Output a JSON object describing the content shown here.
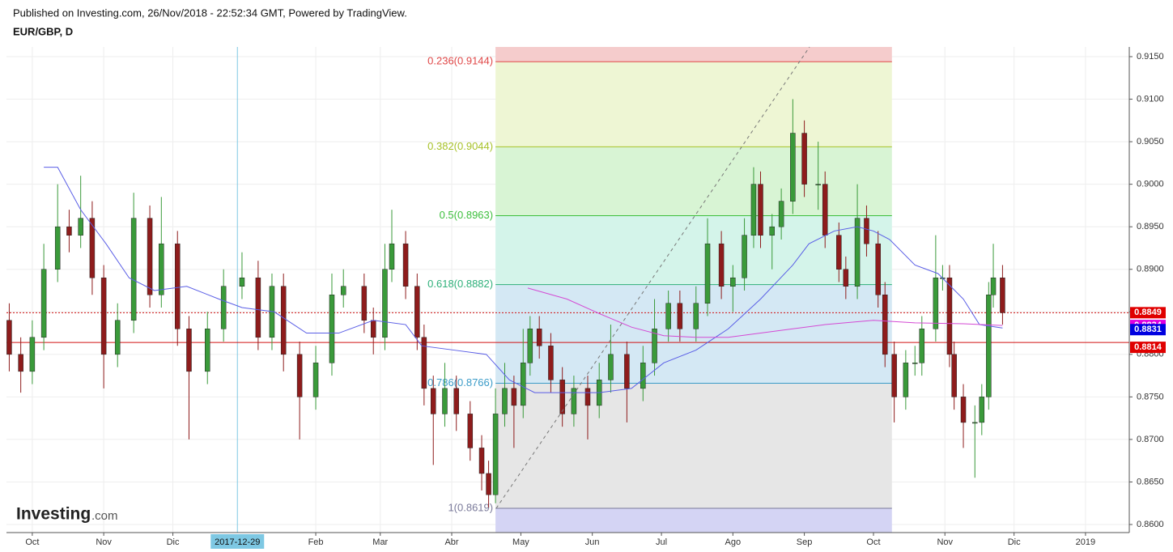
{
  "header": {
    "published": "Published on Investing.com, 26/Nov/2018 - 22:52:34 GMT, Powered by TradingView.",
    "symbol": "EUR/GBP, D"
  },
  "logo": {
    "brand": "Investing",
    "suffix": ".com"
  },
  "chart_data": {
    "type": "candlestick",
    "xlim": [
      -11.2,
      476
    ],
    "ylim": [
      0.85905,
      0.91614
    ],
    "yticks": [
      {
        "value": 0.86,
        "label": "0.8600"
      },
      {
        "value": 0.865,
        "label": "0.8650"
      },
      {
        "value": 0.87,
        "label": "0.8700"
      },
      {
        "value": 0.875,
        "label": "0.8750"
      },
      {
        "value": 0.88,
        "label": "0.8800"
      },
      {
        "value": 0.885,
        "label": "0.8850"
      },
      {
        "value": 0.89,
        "label": "0.8900"
      },
      {
        "value": 0.895,
        "label": "0.8950"
      },
      {
        "value": 0.9,
        "label": "0.9000"
      },
      {
        "value": 0.905,
        "label": "0.9050"
      },
      {
        "value": 0.91,
        "label": "0.9100"
      },
      {
        "value": 0.915,
        "label": "0.9150"
      }
    ],
    "xticks": [
      {
        "value": 0,
        "label": "Oct"
      },
      {
        "value": 31,
        "label": "Nov"
      },
      {
        "value": 61,
        "label": "Dic"
      },
      {
        "value": 123,
        "label": "Feb"
      },
      {
        "value": 151,
        "label": "Mar"
      },
      {
        "value": 182,
        "label": "Abr"
      },
      {
        "value": 212,
        "label": "May"
      },
      {
        "value": 243,
        "label": "Jun"
      },
      {
        "value": 273,
        "label": "Jul"
      },
      {
        "value": 304,
        "label": "Ago"
      },
      {
        "value": 335,
        "label": "Sep"
      },
      {
        "value": 365,
        "label": "Oct"
      },
      {
        "value": 396,
        "label": "Nov"
      },
      {
        "value": 426,
        "label": "Dic"
      },
      {
        "value": 457,
        "label": "2019"
      }
    ],
    "grid": true,
    "up_color": "#3a9a3a",
    "down_color": "#8e1c1c",
    "candles": {
      "x": [
        -10,
        -5,
        0,
        5,
        11,
        16,
        21,
        26,
        31,
        37,
        44,
        51,
        56,
        63,
        68,
        76,
        83,
        91,
        98,
        104,
        109,
        116,
        123,
        130,
        135,
        144,
        148,
        153,
        156,
        162,
        167,
        170,
        174,
        179,
        184,
        190,
        195,
        198,
        201,
        205,
        209,
        213,
        216,
        220,
        225,
        230,
        235,
        241,
        246,
        251,
        258,
        265,
        270,
        276,
        281,
        288,
        293,
        299,
        304,
        309,
        313,
        316,
        321,
        325,
        330,
        335,
        341,
        344,
        350,
        353,
        358,
        362,
        367,
        370,
        374,
        379,
        383,
        386,
        392,
        395,
        398,
        400,
        404,
        409,
        412,
        415,
        417,
        421
      ],
      "open": [
        0.884,
        0.88,
        0.878,
        0.882,
        0.89,
        0.895,
        0.894,
        0.896,
        0.889,
        0.88,
        0.884,
        0.896,
        0.887,
        0.893,
        0.883,
        0.878,
        0.883,
        0.888,
        0.889,
        0.882,
        0.888,
        0.88,
        0.875,
        0.879,
        0.887,
        0.888,
        0.884,
        0.882,
        0.89,
        0.893,
        0.888,
        0.882,
        0.876,
        0.873,
        0.876,
        0.873,
        0.869,
        0.866,
        0.8635,
        0.873,
        0.876,
        0.874,
        0.879,
        0.883,
        0.881,
        0.877,
        0.873,
        0.876,
        0.874,
        0.877,
        0.88,
        0.876,
        0.879,
        0.883,
        0.886,
        0.883,
        0.886,
        0.893,
        0.888,
        0.889,
        0.894,
        0.9,
        0.894,
        0.895,
        0.898,
        0.906,
        0.9,
        0.9,
        0.894,
        0.89,
        0.888,
        0.896,
        0.893,
        0.887,
        0.88,
        0.875,
        0.879,
        0.879,
        0.883,
        0.889,
        0.889,
        0.88,
        0.875,
        0.872,
        0.872,
        0.875,
        0.887,
        0.889
      ],
      "high": [
        0.886,
        0.882,
        0.884,
        0.893,
        0.9,
        0.897,
        0.901,
        0.898,
        0.8905,
        0.886,
        0.899,
        0.8975,
        0.8985,
        0.8945,
        0.8845,
        0.885,
        0.89,
        0.892,
        0.891,
        0.8895,
        0.8895,
        0.8815,
        0.881,
        0.8895,
        0.89,
        0.8895,
        0.8855,
        0.893,
        0.897,
        0.8945,
        0.8895,
        0.8835,
        0.8775,
        0.879,
        0.8775,
        0.8745,
        0.8705,
        0.8675,
        0.876,
        0.879,
        0.8775,
        0.883,
        0.8845,
        0.8845,
        0.8825,
        0.8785,
        0.8775,
        0.8775,
        0.879,
        0.8835,
        0.8815,
        0.881,
        0.8865,
        0.8875,
        0.8875,
        0.888,
        0.896,
        0.8945,
        0.8905,
        0.896,
        0.902,
        0.9015,
        0.8965,
        0.8995,
        0.91,
        0.9075,
        0.905,
        0.9015,
        0.8955,
        0.8915,
        0.9,
        0.8975,
        0.8945,
        0.8885,
        0.8815,
        0.8805,
        0.881,
        0.8845,
        0.894,
        0.8905,
        0.8905,
        0.8815,
        0.8765,
        0.874,
        0.8765,
        0.8885,
        0.893,
        0.8905
      ],
      "low": [
        0.878,
        0.8755,
        0.8765,
        0.8805,
        0.8885,
        0.892,
        0.8925,
        0.887,
        0.876,
        0.8785,
        0.8825,
        0.8855,
        0.8855,
        0.881,
        0.87,
        0.8765,
        0.8815,
        0.8865,
        0.8805,
        0.8805,
        0.878,
        0.87,
        0.8735,
        0.8775,
        0.8855,
        0.8825,
        0.88,
        0.8805,
        0.8885,
        0.8865,
        0.8805,
        0.874,
        0.867,
        0.8715,
        0.871,
        0.8675,
        0.864,
        0.862,
        0.8625,
        0.8715,
        0.869,
        0.8725,
        0.8775,
        0.8795,
        0.8755,
        0.8715,
        0.8715,
        0.87,
        0.8725,
        0.8755,
        0.872,
        0.8745,
        0.8775,
        0.8815,
        0.8815,
        0.8815,
        0.8845,
        0.8865,
        0.885,
        0.8875,
        0.8925,
        0.8925,
        0.89,
        0.8935,
        0.8965,
        0.8985,
        0.897,
        0.8925,
        0.8885,
        0.8865,
        0.8865,
        0.8915,
        0.8855,
        0.8785,
        0.872,
        0.8735,
        0.8775,
        0.8775,
        0.8815,
        0.8875,
        0.8785,
        0.8735,
        0.869,
        0.8655,
        0.8705,
        0.8735,
        0.8855,
        0.8835
      ],
      "close": [
        0.88,
        0.878,
        0.882,
        0.89,
        0.895,
        0.894,
        0.896,
        0.889,
        0.88,
        0.884,
        0.896,
        0.887,
        0.893,
        0.883,
        0.878,
        0.883,
        0.888,
        0.889,
        0.882,
        0.888,
        0.88,
        0.875,
        0.879,
        0.887,
        0.888,
        0.884,
        0.882,
        0.89,
        0.893,
        0.888,
        0.882,
        0.876,
        0.873,
        0.876,
        0.873,
        0.869,
        0.866,
        0.8635,
        0.873,
        0.876,
        0.874,
        0.879,
        0.883,
        0.881,
        0.877,
        0.873,
        0.876,
        0.874,
        0.877,
        0.88,
        0.876,
        0.879,
        0.883,
        0.886,
        0.883,
        0.886,
        0.893,
        0.888,
        0.889,
        0.894,
        0.9,
        0.894,
        0.895,
        0.898,
        0.906,
        0.9,
        0.9,
        0.894,
        0.89,
        0.888,
        0.896,
        0.893,
        0.887,
        0.88,
        0.875,
        0.879,
        0.879,
        0.883,
        0.889,
        0.889,
        0.88,
        0.875,
        0.872,
        0.872,
        0.875,
        0.887,
        0.889,
        0.8849
      ]
    },
    "lines": [
      {
        "color": "#5a5ee6",
        "x": [
          5,
          11,
          21,
          32,
          42,
          53,
          67,
          81,
          91,
          105,
          119,
          133,
          148,
          162,
          169,
          183,
          197,
          207,
          218,
          232,
          246,
          260,
          274,
          288,
          302,
          316,
          330,
          337,
          348,
          358,
          365,
          372,
          383,
          393,
          404,
          411,
          421
        ],
        "values": [
          0.902,
          0.902,
          0.897,
          0.893,
          0.889,
          0.8875,
          0.888,
          0.8865,
          0.8855,
          0.885,
          0.8825,
          0.8825,
          0.884,
          0.8835,
          0.881,
          0.8805,
          0.88,
          0.877,
          0.8755,
          0.8755,
          0.8755,
          0.876,
          0.879,
          0.8805,
          0.883,
          0.8865,
          0.8905,
          0.893,
          0.8945,
          0.895,
          0.8945,
          0.8935,
          0.8905,
          0.8895,
          0.8865,
          0.8835,
          0.8831
        ]
      },
      {
        "color": "#d44ad4",
        "x": [
          215,
          232,
          246,
          260,
          274,
          288,
          302,
          316,
          330,
          344,
          365,
          383,
          404,
          421
        ],
        "values": [
          0.8878,
          0.8865,
          0.8848,
          0.8832,
          0.8822,
          0.882,
          0.882,
          0.8825,
          0.883,
          0.8835,
          0.884,
          0.8837,
          0.8836,
          0.8834
        ]
      }
    ],
    "fib_range": [
      201,
      373
    ],
    "fib_levels": [
      {
        "label": "0.236(0.9144)",
        "value": 0.9144,
        "color": "#e04848"
      },
      {
        "label": "0.382(0.9044)",
        "value": 0.9044,
        "color": "#a8c22a"
      },
      {
        "label": "0.5(0.8963)",
        "value": 0.8963,
        "color": "#3cbf3c"
      },
      {
        "label": "0.618(0.8882)",
        "value": 0.8882,
        "color": "#2fb07a"
      },
      {
        "label": "0.786(0.8766)",
        "value": 0.8766,
        "color": "#3a9bc8"
      },
      {
        "label": "1(0.8619)",
        "value": 0.8619,
        "color": "#7a7a9a"
      }
    ],
    "band_colors": [
      "#f5cccc",
      "#eef6d4",
      "#d8f4d4",
      "#d4f4ea",
      "#d4e8f4",
      "#e6e6e6",
      "#d4d4f4"
    ],
    "hlines": [
      {
        "value": 0.8849,
        "color": "#d01010",
        "style": "dotted"
      },
      {
        "value": 0.8814,
        "color": "#d01010",
        "style": "solid"
      }
    ],
    "price_labels": [
      {
        "value": 0.8849,
        "label": "0.8849",
        "color": "#e00000"
      },
      {
        "value": 0.8834,
        "label": "0.8834",
        "color": "#e000e0"
      },
      {
        "value": 0.8831,
        "label": "0.8831",
        "color": "#0000e0"
      },
      {
        "value": 0.8814,
        "label": "0.8814",
        "color": "#e00000"
      }
    ],
    "cursor": {
      "x": 89,
      "label": "2017-12-29"
    }
  }
}
